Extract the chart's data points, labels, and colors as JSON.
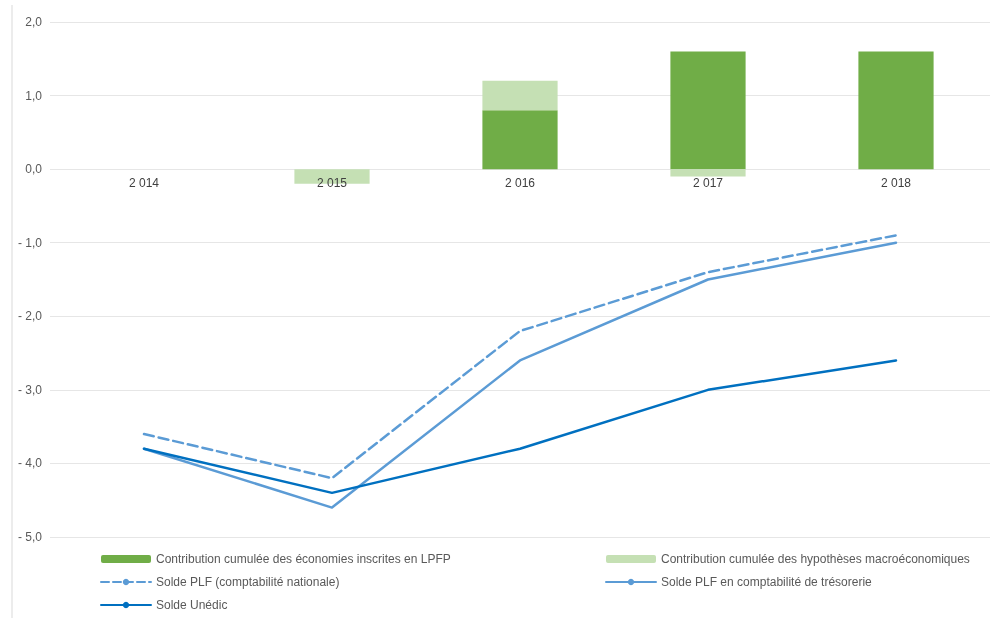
{
  "chart_data": {
    "type": "bar",
    "stacked": true,
    "categories": [
      "2 014",
      "2 015",
      "2 016",
      "2 017",
      "2 018"
    ],
    "series": [
      {
        "name": "Contribution cumulée des économies inscrites en LPFP",
        "color": "#70ad47",
        "values": [
          0,
          0,
          0.8,
          1.6,
          1.6
        ]
      },
      {
        "name": "Contribution cumulée des hypothèses macroéconomiques",
        "color": "#c5e0b4",
        "values": [
          0,
          -0.2,
          0.4,
          -0.1,
          0
        ]
      },
      {
        "name": "Solde PLF (comptabilité nationale)",
        "type": "line",
        "color": "#5b9bd5",
        "line_style": "dashed",
        "values": [
          -3.6,
          -4.2,
          -2.2,
          -1.4,
          -0.9
        ]
      },
      {
        "name": "Solde PLF en comptabilité de trésorerie",
        "type": "line",
        "color": "#5b9bd5",
        "line_style": "solid",
        "values": [
          -3.8,
          -4.6,
          -2.6,
          -1.5,
          -1.0
        ]
      },
      {
        "name": "Solde Unédic",
        "type": "line",
        "color": "#0070c0",
        "line_style": "solid",
        "values": [
          -3.8,
          -4.4,
          -3.8,
          -3.0,
          -2.6
        ]
      }
    ],
    "ylim": [
      -5,
      2
    ],
    "yticks": [
      {
        "value": -5,
        "label": "- 5,0"
      },
      {
        "value": -4,
        "label": "- 4,0"
      },
      {
        "value": -3,
        "label": "- 3,0"
      },
      {
        "value": -2,
        "label": "- 2,0"
      },
      {
        "value": -1,
        "label": "- 1,0"
      },
      {
        "value": 0,
        "label": "0,0"
      },
      {
        "value": 1,
        "label": "1,0"
      },
      {
        "value": 2,
        "label": "2,0"
      }
    ],
    "grid": "y",
    "legend": "bottom",
    "marker": "none"
  }
}
